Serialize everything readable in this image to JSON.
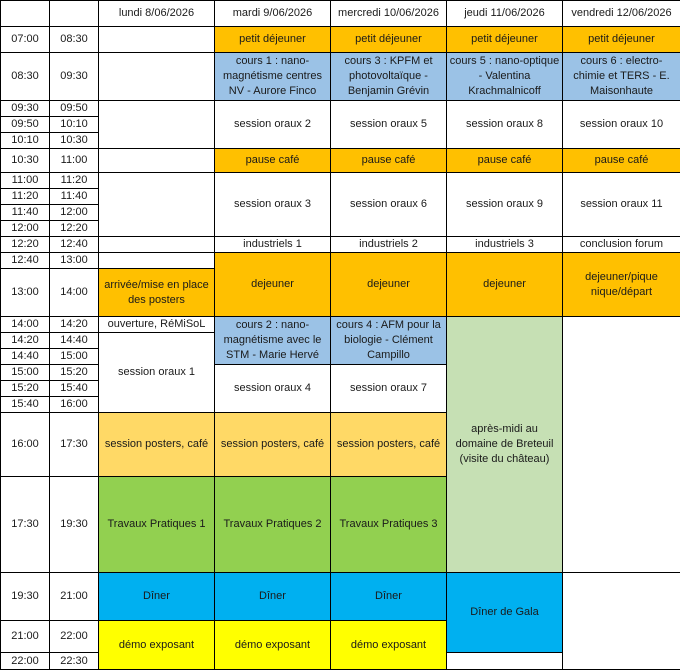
{
  "days": [
    "lundi 8/06/2026",
    "mardi 9/06/2026",
    "mercredi 10/06/2026",
    "jeudi 11/06/2026",
    "vendredi 12/06/2026"
  ],
  "slots": [
    [
      "07:00",
      "08:30"
    ],
    [
      "08:30",
      "09:30"
    ],
    [
      "09:30",
      "09:50"
    ],
    [
      "09:50",
      "10:10"
    ],
    [
      "10:10",
      "10:30"
    ],
    [
      "10:30",
      "11:00"
    ],
    [
      "11:00",
      "11:20"
    ],
    [
      "11:20",
      "11:40"
    ],
    [
      "11:40",
      "12:00"
    ],
    [
      "12:00",
      "12:20"
    ],
    [
      "12:20",
      "12:40"
    ],
    [
      "12:40",
      "13:00"
    ],
    [
      "13:00",
      "14:00"
    ],
    [
      "14:00",
      "14:20"
    ],
    [
      "14:20",
      "14:40"
    ],
    [
      "14:40",
      "15:00"
    ],
    [
      "15:00",
      "15:20"
    ],
    [
      "15:20",
      "15:40"
    ],
    [
      "15:40",
      "16:00"
    ],
    [
      "16:00",
      "17:30"
    ],
    [
      "17:30",
      "19:30"
    ],
    [
      "19:30",
      "21:00"
    ],
    [
      "21:00",
      "22:00"
    ],
    [
      "22:00",
      "22:30"
    ]
  ],
  "colors": {
    "meal": "#FFC000",
    "course": "#9BC2E6",
    "plain": "#FFFFFF",
    "posters": "#FFD966",
    "tp": "#92D050",
    "dinner": "#00B0F0",
    "demo": "#FFFF00",
    "excursion": "#C6E0B4"
  },
  "events": [
    {
      "day": 0,
      "start": "07:00",
      "end": "08:30",
      "text": "",
      "type": "plain"
    },
    {
      "day": 0,
      "start": "08:30",
      "end": "09:30",
      "text": "",
      "type": "plain"
    },
    {
      "day": 0,
      "start": "09:30",
      "end": "10:30",
      "text": "",
      "type": "plain"
    },
    {
      "day": 0,
      "start": "10:30",
      "end": "11:00",
      "text": "",
      "type": "plain"
    },
    {
      "day": 0,
      "start": "11:00",
      "end": "12:20",
      "text": "",
      "type": "plain"
    },
    {
      "day": 0,
      "start": "12:20",
      "end": "12:40",
      "text": "",
      "type": "plain"
    },
    {
      "day": 0,
      "start": "12:40",
      "end": "13:00",
      "text": "",
      "type": "plain"
    },
    {
      "day": 0,
      "start": "13:00",
      "end": "14:00",
      "text": "arrivée/mise en place des posters",
      "type": "meal"
    },
    {
      "day": 0,
      "start": "14:00",
      "end": "14:20",
      "text": "ouverture, RéMiSoL",
      "type": "plain"
    },
    {
      "day": 0,
      "start": "14:20",
      "end": "16:00",
      "text": "session oraux 1",
      "type": "plain"
    },
    {
      "day": 0,
      "start": "16:00",
      "end": "17:30",
      "text": "session posters, café",
      "type": "posters"
    },
    {
      "day": 0,
      "start": "17:30",
      "end": "19:30",
      "text": "Travaux Pratiques 1",
      "type": "tp"
    },
    {
      "day": 0,
      "start": "19:30",
      "end": "21:00",
      "text": "Dîner",
      "type": "dinner"
    },
    {
      "day": 0,
      "start": "21:00",
      "end": "22:30",
      "text": "démo exposant",
      "type": "demo"
    },
    {
      "day": 1,
      "start": "07:00",
      "end": "08:30",
      "text": "petit déjeuner",
      "type": "meal"
    },
    {
      "day": 1,
      "start": "08:30",
      "end": "09:30",
      "text": "cours 1 : nano-magnétisme centres NV - Aurore Finco",
      "type": "course"
    },
    {
      "day": 1,
      "start": "09:30",
      "end": "10:30",
      "text": "session oraux 2",
      "type": "plain"
    },
    {
      "day": 1,
      "start": "10:30",
      "end": "11:00",
      "text": "pause café",
      "type": "meal"
    },
    {
      "day": 1,
      "start": "11:00",
      "end": "12:20",
      "text": "session oraux 3",
      "type": "plain"
    },
    {
      "day": 1,
      "start": "12:20",
      "end": "12:40",
      "text": "industriels 1",
      "type": "plain"
    },
    {
      "day": 1,
      "start": "12:40",
      "end": "14:00",
      "text": "dejeuner",
      "type": "meal"
    },
    {
      "day": 1,
      "start": "14:00",
      "end": "15:00",
      "text": "cours 2 : nano-magnétisme avec le STM - Marie Hervé",
      "type": "course"
    },
    {
      "day": 1,
      "start": "15:00",
      "end": "16:00",
      "text": "session oraux 4",
      "type": "plain"
    },
    {
      "day": 1,
      "start": "16:00",
      "end": "17:30",
      "text": "session posters, café",
      "type": "posters"
    },
    {
      "day": 1,
      "start": "17:30",
      "end": "19:30",
      "text": "Travaux Pratiques 2",
      "type": "tp"
    },
    {
      "day": 1,
      "start": "19:30",
      "end": "21:00",
      "text": "Dîner",
      "type": "dinner"
    },
    {
      "day": 1,
      "start": "21:00",
      "end": "22:30",
      "text": "démo exposant",
      "type": "demo"
    },
    {
      "day": 2,
      "start": "07:00",
      "end": "08:30",
      "text": "petit déjeuner",
      "type": "meal"
    },
    {
      "day": 2,
      "start": "08:30",
      "end": "09:30",
      "text": "cours 3 : KPFM et photovoltaïque - Benjamin Grévin",
      "type": "course"
    },
    {
      "day": 2,
      "start": "09:30",
      "end": "10:30",
      "text": "session oraux 5",
      "type": "plain"
    },
    {
      "day": 2,
      "start": "10:30",
      "end": "11:00",
      "text": "pause café",
      "type": "meal"
    },
    {
      "day": 2,
      "start": "11:00",
      "end": "12:20",
      "text": "session oraux 6",
      "type": "plain"
    },
    {
      "day": 2,
      "start": "12:20",
      "end": "12:40",
      "text": "industriels 2",
      "type": "plain"
    },
    {
      "day": 2,
      "start": "12:40",
      "end": "14:00",
      "text": "dejeuner",
      "type": "meal"
    },
    {
      "day": 2,
      "start": "14:00",
      "end": "15:00",
      "text": "cours 4 : AFM pour la biologie - Clément Campillo",
      "type": "course"
    },
    {
      "day": 2,
      "start": "15:00",
      "end": "16:00",
      "text": "session oraux 7",
      "type": "plain"
    },
    {
      "day": 2,
      "start": "16:00",
      "end": "17:30",
      "text": "session posters, café",
      "type": "posters"
    },
    {
      "day": 2,
      "start": "17:30",
      "end": "19:30",
      "text": "Travaux Pratiques 3",
      "type": "tp"
    },
    {
      "day": 2,
      "start": "19:30",
      "end": "21:00",
      "text": "Dîner",
      "type": "dinner"
    },
    {
      "day": 2,
      "start": "21:00",
      "end": "22:30",
      "text": "démo exposant",
      "type": "demo"
    },
    {
      "day": 3,
      "start": "07:00",
      "end": "08:30",
      "text": "petit déjeuner",
      "type": "meal"
    },
    {
      "day": 3,
      "start": "08:30",
      "end": "09:30",
      "text": "cours 5 : nano-optique - Valentina Krachmalnicoff",
      "type": "course"
    },
    {
      "day": 3,
      "start": "09:30",
      "end": "10:30",
      "text": "session oraux 8",
      "type": "plain"
    },
    {
      "day": 3,
      "start": "10:30",
      "end": "11:00",
      "text": "pause café",
      "type": "meal"
    },
    {
      "day": 3,
      "start": "11:00",
      "end": "12:20",
      "text": "session oraux 9",
      "type": "plain"
    },
    {
      "day": 3,
      "start": "12:20",
      "end": "12:40",
      "text": "industriels 3",
      "type": "plain"
    },
    {
      "day": 3,
      "start": "12:40",
      "end": "14:00",
      "text": "dejeuner",
      "type": "meal"
    },
    {
      "day": 3,
      "start": "14:00",
      "end": "19:30",
      "text": "après-midi au domaine de Breteuil (visite du château)",
      "type": "excursion"
    },
    {
      "day": 3,
      "start": "19:30",
      "end": "22:00",
      "text": "Dîner de Gala",
      "type": "dinner"
    },
    {
      "day": 3,
      "start": "22:00",
      "end": "22:30",
      "text": "",
      "type": "plain"
    },
    {
      "day": 4,
      "start": "07:00",
      "end": "08:30",
      "text": "petit déjeuner",
      "type": "meal"
    },
    {
      "day": 4,
      "start": "08:30",
      "end": "09:30",
      "text": "cours 6 : electro-chimie et TERS - E. Maisonhaute",
      "type": "course"
    },
    {
      "day": 4,
      "start": "09:30",
      "end": "10:30",
      "text": "session oraux 10",
      "type": "plain"
    },
    {
      "day": 4,
      "start": "10:30",
      "end": "11:00",
      "text": "pause café",
      "type": "meal"
    },
    {
      "day": 4,
      "start": "11:00",
      "end": "12:20",
      "text": "session oraux 11",
      "type": "plain"
    },
    {
      "day": 4,
      "start": "12:20",
      "end": "12:40",
      "text": "conclusion forum",
      "type": "plain"
    },
    {
      "day": 4,
      "start": "12:40",
      "end": "14:00",
      "text": "dejeuner/pique nique/départ",
      "type": "meal"
    },
    {
      "day": 4,
      "start": "14:00",
      "end": "19:30",
      "text": "",
      "type": "plain"
    },
    {
      "day": 4,
      "start": "19:30",
      "end": "22:30",
      "text": "",
      "type": "plain"
    }
  ]
}
